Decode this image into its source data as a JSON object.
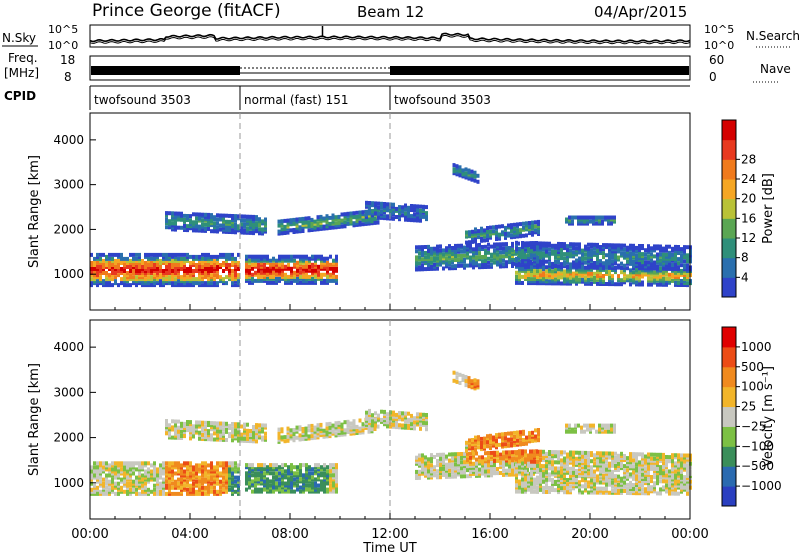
{
  "header": {
    "title": "Prince George (fitACF)",
    "beam": "Beam 12",
    "date": "04/Apr/2015"
  },
  "aux": {
    "nsky_label": "N.Sky",
    "nsearch_label": "N.Search",
    "noise_ticks": [
      "10^5",
      "10^0"
    ],
    "freq_label": "Freq.",
    "freq_unit": "[MHz]",
    "freq_ticks": [
      "18",
      "8"
    ],
    "nave_label": "Nave",
    "nave_ticks": [
      "60",
      "0"
    ],
    "cpid_label": "CPID",
    "cpid_segments": [
      {
        "label": "twofsound 3503",
        "start_h": 0,
        "end_h": 6
      },
      {
        "label": "normal (fast) 151",
        "start_h": 6,
        "end_h": 12
      },
      {
        "label": "twofsound 3503",
        "start_h": 12,
        "end_h": 24
      }
    ]
  },
  "chart_data": [
    {
      "type": "heatmap",
      "name": "power",
      "ylabel": "Slant Range [km]",
      "yticks": [
        "1000",
        "2000",
        "3000",
        "4000"
      ],
      "ylim": [
        200,
        4600
      ],
      "xlim": [
        0,
        24
      ],
      "colorbar": {
        "label": "Power [dB]",
        "ticks": [
          "4",
          "8",
          "12",
          "16",
          "20",
          "24",
          "28"
        ],
        "colors": [
          "#2f43c9",
          "#2a6fae",
          "#2f8f7a",
          "#5aa653",
          "#b9c237",
          "#f5a623",
          "#f07a1c",
          "#e8391f",
          "#d40000"
        ]
      }
    },
    {
      "type": "heatmap",
      "name": "velocity",
      "ylabel": "Slant Range [km]",
      "yticks": [
        "1000",
        "2000",
        "3000",
        "4000"
      ],
      "ylim": [
        200,
        4600
      ],
      "xlim": [
        0,
        24
      ],
      "xlabel": "Time UT",
      "xticks": [
        "00:00",
        "04:00",
        "08:00",
        "12:00",
        "16:00",
        "20:00",
        "00:00"
      ],
      "colorbar": {
        "label": "Velocity [m s⁻¹]",
        "ticks": [
          "1000",
          "500",
          "100",
          "25",
          "−25",
          "−100",
          "−500",
          "−1000"
        ],
        "colors": [
          "#2a3fc0",
          "#2a6ab0",
          "#3a8e5a",
          "#7cc044",
          "#c8c8c0",
          "#f2b52a",
          "#f08a1e",
          "#ec4c16",
          "#e00000"
        ]
      }
    }
  ]
}
